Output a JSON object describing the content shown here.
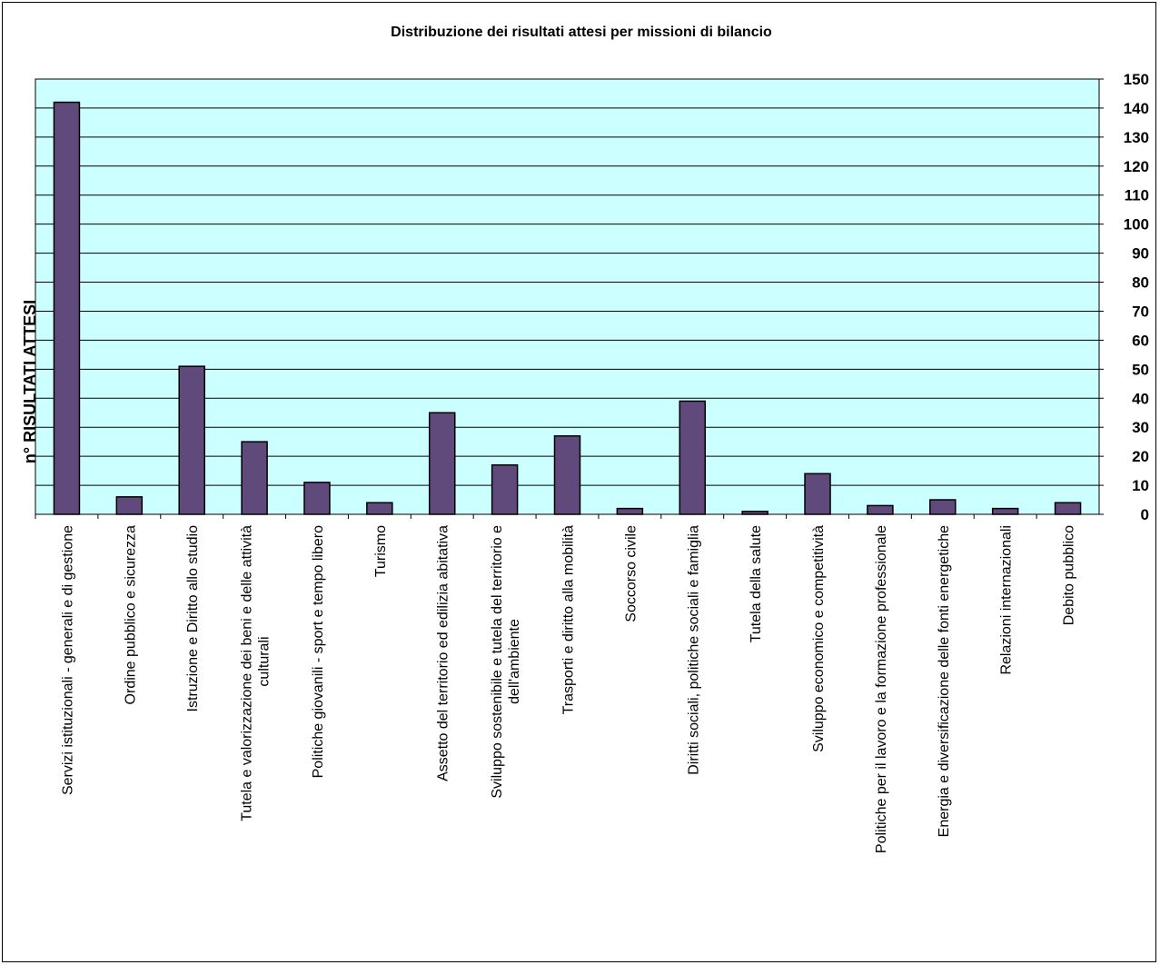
{
  "chart_data": {
    "type": "bar",
    "title": "Distribuzione dei risultati attesi per missioni di bilancio",
    "xlabel": "",
    "ylabel": "n° RISULTATI ATTESI",
    "ylim": [
      0,
      150
    ],
    "yticks": [
      0,
      10,
      20,
      30,
      40,
      50,
      60,
      70,
      80,
      90,
      100,
      110,
      120,
      130,
      140,
      150
    ],
    "y_axis_side": "right",
    "grid": true,
    "legend": "none",
    "categories": [
      [
        "Servizi istituzionali  - generali e di gestione"
      ],
      [
        "Ordine pubblico e sicurezza"
      ],
      [
        "Istruzione e Diritto allo studio"
      ],
      [
        "Tutela e valorizzazione dei beni e delle attività",
        "culturali"
      ],
      [
        "Politiche giovanili - sport e tempo libero"
      ],
      [
        "Turismo"
      ],
      [
        "Assetto del territorio ed edilizia abitativa"
      ],
      [
        "Sviluppo sostenibile e tutela del territorio e",
        "dell'ambiente"
      ],
      [
        "Trasporti e diritto alla mobilità"
      ],
      [
        "Soccorso civile"
      ],
      [
        "Diritti sociali, politiche sociali e famiglia"
      ],
      [
        "Tutela della salute"
      ],
      [
        "Sviluppo economico e competitività"
      ],
      [
        "Politiche per il lavoro e la formazione professionale"
      ],
      [
        "Energia e diversificazione delle fonti energetiche"
      ],
      [
        "Relazioni internazionali"
      ],
      [
        "Debito pubblico"
      ]
    ],
    "values": [
      142,
      6,
      51,
      25,
      11,
      4,
      35,
      17,
      27,
      2,
      39,
      1,
      14,
      3,
      5,
      2,
      4
    ],
    "colors": {
      "bar_fill": "#604A7B",
      "bar_stroke": "#000000",
      "plot_background": "#CCFFFF",
      "gridline": "#000000"
    }
  }
}
